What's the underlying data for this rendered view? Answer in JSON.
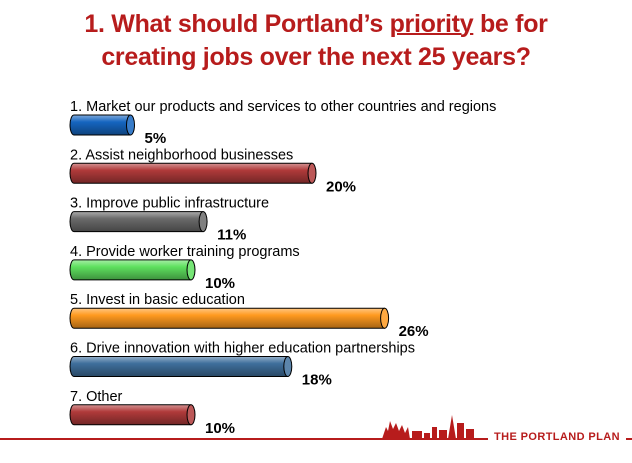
{
  "slide": {
    "title_prefix": "1. What should Portland’s ",
    "title_emphasis": "priority",
    "title_line1_suffix": " be for",
    "title_line2": "creating jobs over the next 25 years?"
  },
  "logo": {
    "text": "THE PORTLAND PLAN"
  },
  "colors": {
    "title": "#b71c1c",
    "accent": "#b71c1c"
  },
  "chart_data": {
    "type": "bar",
    "orientation": "horizontal",
    "categories": [
      "1.  Market our products and services to other countries and regions",
      "2.  Assist neighborhood businesses",
      "3.  Improve public infrastructure",
      "4.  Provide worker training programs",
      "5.  Invest in basic education",
      "6.  Drive innovation with higher education partnerships",
      "7.  Other"
    ],
    "values": [
      5,
      20,
      11,
      10,
      26,
      18,
      10
    ],
    "value_labels": [
      "5%",
      "20%",
      "11%",
      "10%",
      "26%",
      "18%",
      "10%"
    ],
    "bar_colors": [
      "#1565c0",
      "#b03a3a",
      "#6a6a6a",
      "#5ee05e",
      "#ff9a1f",
      "#3f6f9c",
      "#b03a3a"
    ],
    "value_unit": "%",
    "grid": false,
    "legend": false
  }
}
